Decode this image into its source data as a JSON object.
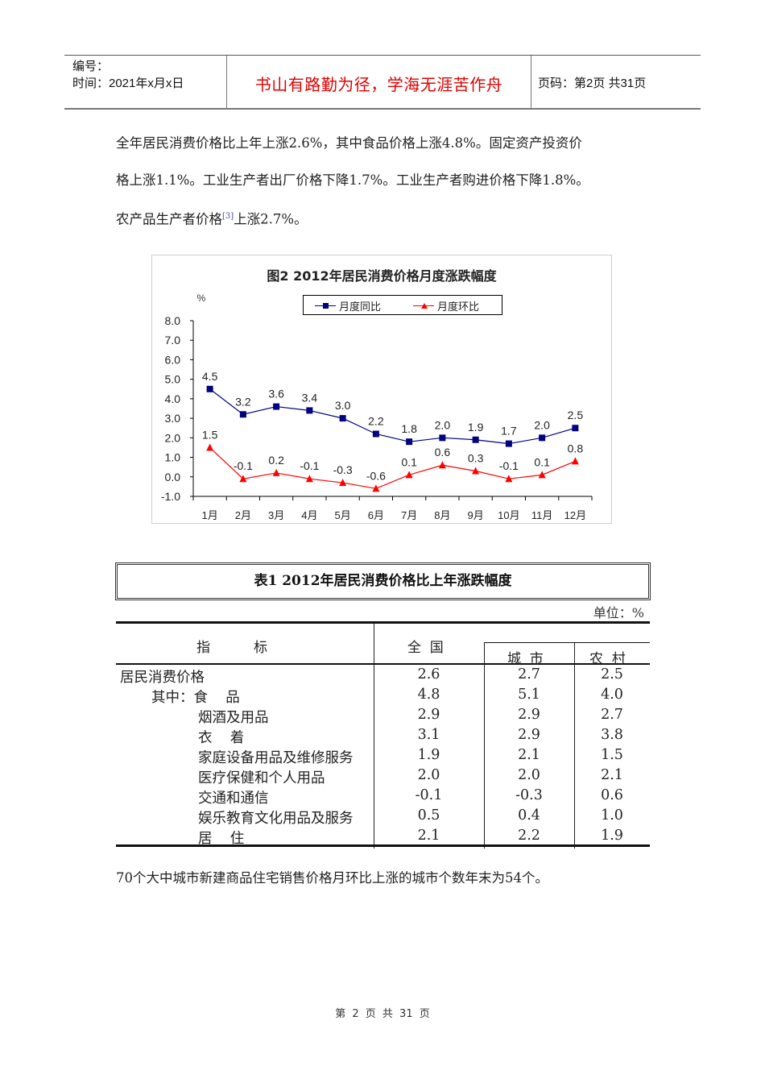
{
  "header": {
    "serial_label": "编号：",
    "date_label": "时间：2021年x月x日",
    "motto": "书山有路勤为径，学海无涯苦作舟",
    "motto_color": "#e00000",
    "page_info": "页码：第2页  共31页"
  },
  "paragraph": {
    "line1": "全年居民消费价格比上年上涨2.6%，其中食品价格上涨4.8%。固定资产投资价",
    "line2": "格上涨1.1%。工业生产者出厂价格下降1.7%。工业生产者购进价格下降1.8%。",
    "line3_pre": "农产品生产者价格",
    "line3_ref": "[3]",
    "line3_post": "上涨2.7%。"
  },
  "chart_data": {
    "type": "line",
    "title": "图2   2012年居民消费价格月度涨跌幅度",
    "ylabel": "%",
    "xlabel": "",
    "categories": [
      "1月",
      "2月",
      "3月",
      "4月",
      "5月",
      "6月",
      "7月",
      "8月",
      "9月",
      "10月",
      "11月",
      "12月"
    ],
    "series": [
      {
        "name": "月度同比",
        "color": "#000080",
        "marker": "square",
        "values": [
          4.5,
          3.2,
          3.6,
          3.4,
          3.0,
          2.2,
          1.8,
          2.0,
          1.9,
          1.7,
          2.0,
          2.5
        ]
      },
      {
        "name": "月度环比",
        "color": "#ff0000",
        "marker": "triangle",
        "values": [
          1.5,
          -0.1,
          0.2,
          -0.1,
          -0.3,
          -0.6,
          0.1,
          0.6,
          0.3,
          -0.1,
          0.1,
          0.8
        ]
      }
    ],
    "ylim": [
      -1.0,
      8.0
    ],
    "yticks": [
      "8.0",
      "7.0",
      "6.0",
      "5.0",
      "4.0",
      "3.0",
      "2.0",
      "1.0",
      "0.0",
      "-1.0"
    ],
    "grid": false,
    "legend_position": "top"
  },
  "table": {
    "title": "表1   2012年居民消费价格比上年涨跌幅度",
    "unit": "单位：%",
    "headers": {
      "indicator": "指          标",
      "national": "全  国",
      "urban": "城  市",
      "rural": "农  村"
    },
    "rows": [
      {
        "label": "居民消费价格",
        "indent": 0,
        "national": "2.6",
        "urban": "2.7",
        "rural": "2.5"
      },
      {
        "label": "其中：食    品",
        "indent": 1,
        "national": "4.8",
        "urban": "5.1",
        "rural": "4.0"
      },
      {
        "label": "烟酒及用品",
        "indent": 2,
        "national": "2.9",
        "urban": "2.9",
        "rural": "2.7"
      },
      {
        "label": "衣    着",
        "indent": 2,
        "national": "3.1",
        "urban": "2.9",
        "rural": "3.8"
      },
      {
        "label": "家庭设备用品及维修服务",
        "indent": 2,
        "national": "1.9",
        "urban": "2.1",
        "rural": "1.5"
      },
      {
        "label": "医疗保健和个人用品",
        "indent": 2,
        "national": "2.0",
        "urban": "2.0",
        "rural": "2.1"
      },
      {
        "label": "交通和通信",
        "indent": 2,
        "national": "-0.1",
        "urban": "-0.3",
        "rural": "0.6"
      },
      {
        "label": "娱乐教育文化用品及服务",
        "indent": 2,
        "national": "0.5",
        "urban": "0.4",
        "rural": "1.0"
      },
      {
        "label": "居    住",
        "indent": 2,
        "national": "2.1",
        "urban": "2.2",
        "rural": "1.9"
      }
    ]
  },
  "paragraph2": "70个大中城市新建商品住宅销售价格月环比上涨的城市个数年末为54个。",
  "footer": "第 2 页 共 31 页"
}
